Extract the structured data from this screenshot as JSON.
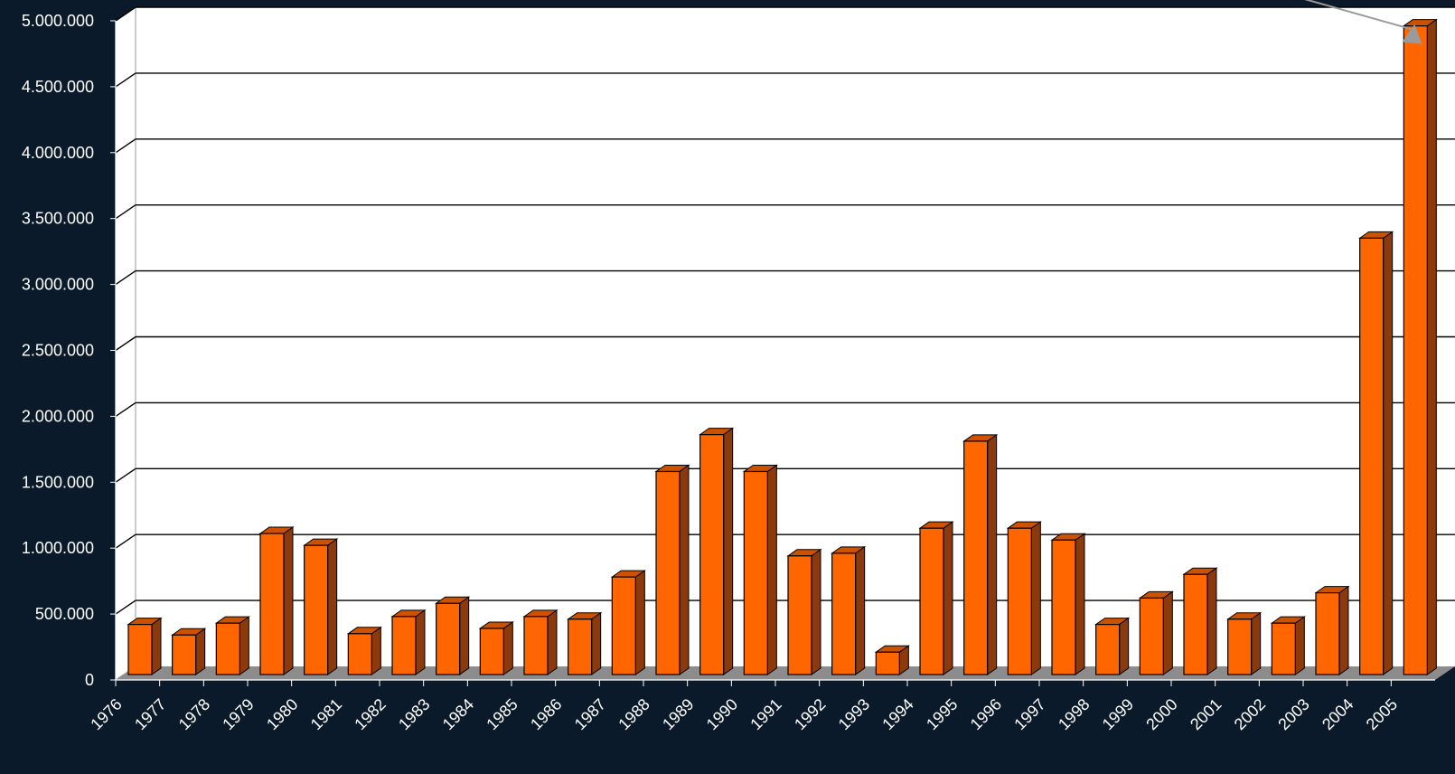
{
  "chart_data": {
    "type": "bar",
    "title": "",
    "xlabel": "",
    "ylabel": "",
    "ylim": [
      0,
      5000000
    ],
    "y_ticks": [
      0,
      500000,
      1000000,
      1500000,
      2000000,
      2500000,
      3000000,
      3500000,
      4000000,
      4500000,
      5000000
    ],
    "y_tick_labels": [
      "0",
      "500.000",
      "1.000.000",
      "1.500.000",
      "2.000.000",
      "2.500.000",
      "3.000.000",
      "3.500.000",
      "4.000.000",
      "4.500.000",
      "5.000.000"
    ],
    "categories": [
      "1976",
      "1977",
      "1978",
      "1979",
      "1980",
      "1981",
      "1982",
      "1983",
      "1984",
      "1985",
      "1986",
      "1987",
      "1988",
      "1989",
      "1990",
      "1991",
      "1992",
      "1993",
      "1994",
      "1995",
      "1996",
      "1997",
      "1998",
      "1999",
      "2000",
      "2001",
      "2002",
      "2003",
      "2004",
      "2005"
    ],
    "values": [
      380000,
      300000,
      390000,
      1070000,
      980000,
      310000,
      440000,
      540000,
      350000,
      440000,
      420000,
      740000,
      1540000,
      1820000,
      1540000,
      900000,
      920000,
      170000,
      1110000,
      1770000,
      1110000,
      1020000,
      380000,
      580000,
      760000,
      420000,
      390000,
      620000,
      3310000,
      4920000
    ],
    "grid": true,
    "legend": "none",
    "colors": {
      "bar_front": "#ff6600",
      "bar_top": "#cc5200",
      "bar_side": "#8a3a0c",
      "floor": "#8c8c8c",
      "plot_bg": "#ffffff",
      "page_bg": "#0b1a2a",
      "arrow": "#9a9a9a"
    }
  }
}
